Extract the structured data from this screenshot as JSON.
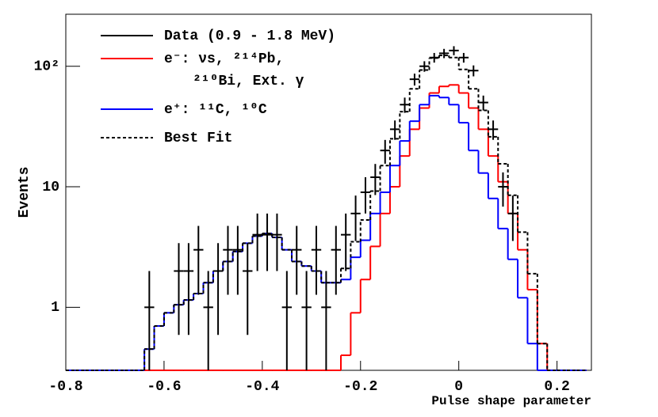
{
  "chart_data": {
    "type": "histogram",
    "xlabel": "Pulse shape parameter",
    "ylabel": "Events",
    "xlim": [
      -0.8,
      0.27
    ],
    "ylim": [
      0.3,
      270
    ],
    "log_y": true,
    "xticks": [
      -0.8,
      -0.6,
      -0.4,
      -0.2,
      0,
      0.2
    ],
    "yticks": [
      1,
      10,
      {
        "value": 100,
        "label": "10²"
      }
    ],
    "legend": "upper left",
    "bins": [
      -0.8,
      -0.78,
      -0.76,
      -0.74,
      -0.72,
      -0.7,
      -0.68,
      -0.66,
      -0.64,
      -0.62,
      -0.6,
      -0.58,
      -0.56,
      -0.54,
      -0.52,
      -0.5,
      -0.48,
      -0.46,
      -0.44,
      -0.42,
      -0.4,
      -0.38,
      -0.36,
      -0.34,
      -0.32,
      -0.3,
      -0.28,
      -0.26,
      -0.24,
      -0.22,
      -0.2,
      -0.18,
      -0.16,
      -0.14,
      -0.12,
      -0.1,
      -0.08,
      -0.06,
      -0.04,
      -0.02,
      0,
      0.02,
      0.04,
      0.06,
      0.08,
      0.1,
      0.12,
      0.14,
      0.16,
      0.18,
      0.2,
      0.22,
      0.24,
      0.26
    ],
    "series": [
      {
        "name": "Data (0.9 - 1.8 MeV)",
        "color": "#000000",
        "style": "points",
        "values": [
          null,
          null,
          null,
          null,
          null,
          null,
          null,
          null,
          1,
          null,
          null,
          2,
          2,
          3,
          1,
          2,
          3,
          3,
          2,
          4,
          4,
          4,
          1,
          3,
          1,
          3,
          1,
          3,
          4,
          6,
          9,
          12,
          20,
          30,
          48,
          78,
          100,
          118,
          128,
          135,
          118,
          92,
          50,
          30,
          10,
          6,
          null,
          null,
          null,
          null,
          null,
          null,
          null
        ],
        "errors": [
          null,
          null,
          null,
          null,
          null,
          null,
          null,
          null,
          1,
          null,
          null,
          1.41,
          1.41,
          1.73,
          1,
          1.41,
          1.73,
          1.73,
          1.41,
          2,
          2,
          2,
          1,
          1.73,
          1,
          1.73,
          1,
          1.73,
          2,
          2.45,
          3,
          3.46,
          4.47,
          5.48,
          6.93,
          8.83,
          10,
          10.86,
          11.31,
          11.62,
          10.86,
          9.59,
          7.07,
          5.48,
          3.16,
          2.45,
          null,
          null,
          null,
          null,
          null,
          null,
          null
        ]
      },
      {
        "name": "e⁻: νs, ²¹⁴Pb,\n²¹⁰Bi, Ext. γ",
        "color": "#ff0000",
        "style": "step",
        "values": [
          0,
          0,
          0,
          0,
          0,
          0,
          0,
          0,
          0,
          0,
          0,
          0,
          0,
          0,
          0,
          0,
          0,
          0,
          0,
          0,
          0,
          0,
          0,
          0,
          0,
          0,
          0,
          0,
          0.4,
          0.9,
          1.7,
          3.2,
          6,
          10,
          18,
          30,
          45,
          60,
          68,
          70,
          60,
          45,
          30,
          18,
          11,
          6,
          3,
          1.4,
          0.5,
          0,
          0,
          0,
          0
        ]
      },
      {
        "name": "e⁺: ¹¹C, ¹⁰C",
        "color": "#0000ff",
        "style": "step",
        "values": [
          0,
          0,
          0,
          0,
          0,
          0,
          0,
          0,
          0.45,
          0.7,
          0.9,
          1.05,
          1.15,
          1.3,
          1.6,
          2.0,
          2.4,
          2.9,
          3.4,
          3.9,
          4.1,
          3.8,
          3.0,
          2.4,
          2.2,
          2.0,
          1.6,
          1.6,
          1.7,
          2.6,
          3.6,
          6,
          9,
          15,
          24,
          35,
          48,
          57,
          55,
          48,
          34,
          20,
          13,
          8,
          4.5,
          2.5,
          1.2,
          0.5,
          0,
          0,
          0,
          0,
          0
        ]
      },
      {
        "name": "Best Fit",
        "color": "#000000",
        "style": "step",
        "dashed": true,
        "values": [
          0,
          0,
          0,
          0,
          0,
          0,
          0,
          0,
          0.45,
          0.7,
          0.9,
          1.05,
          1.15,
          1.3,
          1.6,
          2.0,
          2.4,
          2.9,
          3.4,
          3.9,
          4.1,
          3.8,
          3.0,
          2.4,
          2.2,
          2.0,
          1.6,
          1.6,
          2.1,
          3.5,
          5.3,
          9.2,
          15,
          25,
          42,
          65,
          93,
          117,
          123,
          118,
          94,
          65,
          43,
          26,
          15.5,
          8.5,
          4.2,
          1.9,
          0.5,
          0,
          0,
          0,
          0
        ]
      }
    ]
  }
}
